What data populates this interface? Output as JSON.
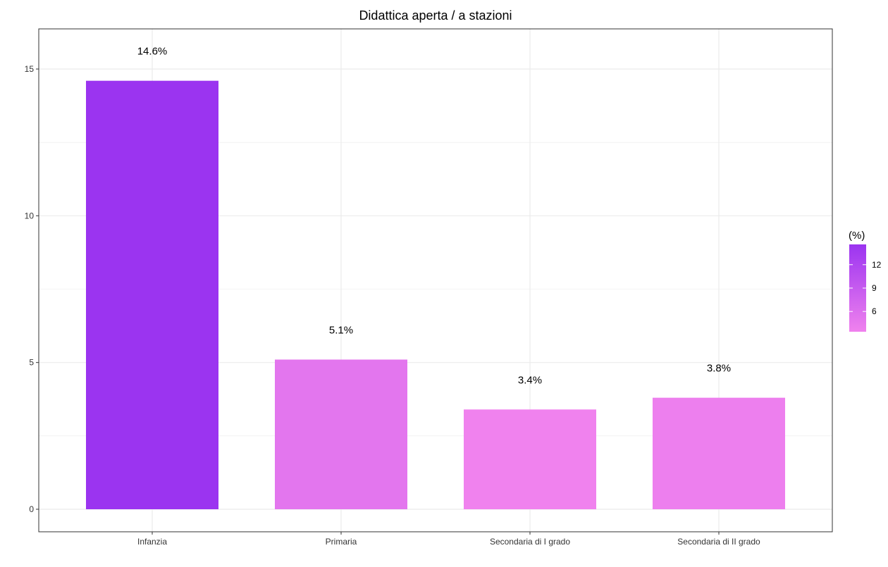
{
  "chart_data": {
    "type": "bar",
    "title": "Didattica aperta / a stazioni",
    "xlabel": "",
    "ylabel": "",
    "categories": [
      "Infanzia",
      "Primaria",
      "Secondaria di I grado",
      "Secondaria di II grado"
    ],
    "values": [
      14.6,
      5.1,
      3.4,
      3.8
    ],
    "data_labels": [
      "14.6%",
      "5.1%",
      "3.4%",
      "3.8%"
    ],
    "ylim": [
      0,
      16
    ],
    "yticks": [
      0,
      5,
      10,
      15
    ],
    "grid": true,
    "legend": {
      "title": "(%)",
      "placement": "right",
      "ticks": [
        6,
        9,
        12
      ],
      "range": [
        3.4,
        14.6
      ],
      "color_low": "#F082EE",
      "color_high": "#9B34F0"
    },
    "colors": {
      "bar_low": "#F082EE",
      "bar_high": "#9B34F0",
      "grid": "#EBEBEB",
      "panel_border": "#333333"
    }
  }
}
